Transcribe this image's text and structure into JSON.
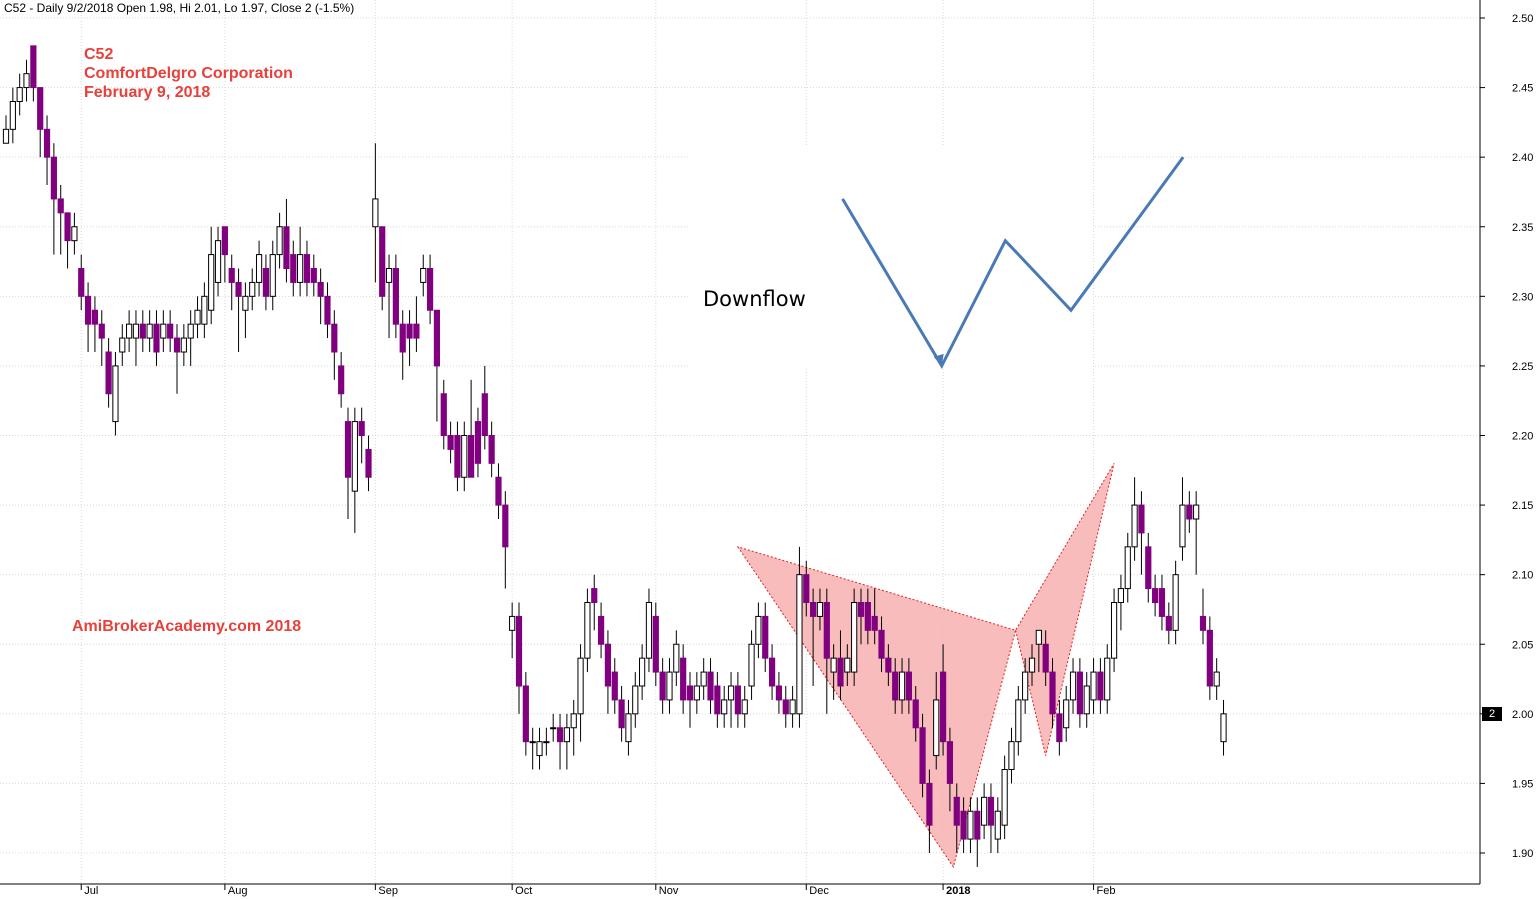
{
  "header": {
    "info_line": "C52 - Daily 9/2/2018 Open 1.98, Hi 2.01, Lo 1.97, Close 2 (-1.5%)"
  },
  "title": {
    "symbol": "C52",
    "company": "ComfortDelgro Corporation",
    "date": "February 9, 2018"
  },
  "watermark": "AmiBrokerAcademy.com  2018",
  "annotation": "Downflow",
  "last_price_tag": "2",
  "colors": {
    "down_candle": "#800080",
    "up_candle": "#ffffff",
    "pattern_fill": "#f7b0b0",
    "pattern_edge": "#e02020",
    "annotation_line": "#4a7ab5",
    "text_red": "#e8403a"
  },
  "chart_data": {
    "type": "candlestick",
    "ylim": [
      1.88,
      2.5
    ],
    "y_ticks": [
      "1.90",
      "1.95",
      "2.00",
      "2.05",
      "2.10",
      "2.15",
      "2.20",
      "2.25",
      "2.30",
      "2.35",
      "2.40",
      "2.45",
      "2.50"
    ],
    "x_ticks": [
      "Jul",
      "Aug",
      "Sep",
      "Oct",
      "Nov",
      "Dec",
      "2018",
      "Feb"
    ],
    "grid": true,
    "candles": [
      [
        2.41,
        2.42,
        2.43,
        2.41
      ],
      [
        2.42,
        2.44,
        2.45,
        2.41
      ],
      [
        2.44,
        2.45,
        2.46,
        2.43
      ],
      [
        2.45,
        2.46,
        2.47,
        2.44
      ],
      [
        2.48,
        2.45,
        2.48,
        2.44
      ],
      [
        2.45,
        2.42,
        2.45,
        2.4
      ],
      [
        2.42,
        2.4,
        2.43,
        2.38
      ],
      [
        2.4,
        2.37,
        2.41,
        2.33
      ],
      [
        2.37,
        2.36,
        2.38,
        2.33
      ],
      [
        2.36,
        2.34,
        2.36,
        2.32
      ],
      [
        2.34,
        2.35,
        2.36,
        2.33
      ],
      [
        2.32,
        2.3,
        2.33,
        2.29
      ],
      [
        2.3,
        2.28,
        2.31,
        2.26
      ],
      [
        2.29,
        2.28,
        2.3,
        2.26
      ],
      [
        2.28,
        2.27,
        2.29,
        2.25
      ],
      [
        2.26,
        2.23,
        2.27,
        2.22
      ],
      [
        2.21,
        2.25,
        2.26,
        2.2
      ],
      [
        2.26,
        2.27,
        2.28,
        2.25
      ],
      [
        2.27,
        2.28,
        2.29,
        2.26
      ],
      [
        2.27,
        2.28,
        2.29,
        2.25
      ],
      [
        2.28,
        2.27,
        2.29,
        2.26
      ],
      [
        2.27,
        2.28,
        2.29,
        2.26
      ],
      [
        2.28,
        2.26,
        2.29,
        2.25
      ],
      [
        2.27,
        2.28,
        2.29,
        2.26
      ],
      [
        2.28,
        2.27,
        2.29,
        2.26
      ],
      [
        2.27,
        2.26,
        2.28,
        2.23
      ],
      [
        2.26,
        2.27,
        2.28,
        2.25
      ],
      [
        2.27,
        2.28,
        2.29,
        2.25
      ],
      [
        2.28,
        2.29,
        2.3,
        2.27
      ],
      [
        2.28,
        2.3,
        2.31,
        2.27
      ],
      [
        2.29,
        2.33,
        2.35,
        2.28
      ],
      [
        2.31,
        2.34,
        2.35,
        2.3
      ],
      [
        2.35,
        2.33,
        2.35,
        2.31
      ],
      [
        2.32,
        2.31,
        2.33,
        2.29
      ],
      [
        2.31,
        2.3,
        2.32,
        2.26
      ],
      [
        2.29,
        2.3,
        2.31,
        2.27
      ],
      [
        2.3,
        2.31,
        2.32,
        2.29
      ],
      [
        2.31,
        2.33,
        2.34,
        2.3
      ],
      [
        2.32,
        2.3,
        2.33,
        2.29
      ],
      [
        2.3,
        2.33,
        2.34,
        2.29
      ],
      [
        2.33,
        2.35,
        2.36,
        2.32
      ],
      [
        2.35,
        2.32,
        2.37,
        2.31
      ],
      [
        2.33,
        2.31,
        2.34,
        2.3
      ],
      [
        2.31,
        2.33,
        2.35,
        2.3
      ],
      [
        2.33,
        2.31,
        2.34,
        2.3
      ],
      [
        2.32,
        2.31,
        2.33,
        2.3
      ],
      [
        2.31,
        2.3,
        2.32,
        2.28
      ],
      [
        2.3,
        2.28,
        2.31,
        2.27
      ],
      [
        2.28,
        2.26,
        2.29,
        2.24
      ],
      [
        2.25,
        2.23,
        2.26,
        2.22
      ],
      [
        2.21,
        2.17,
        2.22,
        2.14
      ],
      [
        2.16,
        2.21,
        2.22,
        2.13
      ],
      [
        2.21,
        2.2,
        2.22,
        2.18
      ],
      [
        2.19,
        2.17,
        2.2,
        2.16
      ],
      [
        2.35,
        2.37,
        2.41,
        2.31
      ],
      [
        2.35,
        2.3,
        2.35,
        2.29
      ],
      [
        2.31,
        2.32,
        2.33,
        2.27
      ],
      [
        2.32,
        2.28,
        2.33,
        2.27
      ],
      [
        2.28,
        2.26,
        2.29,
        2.24
      ],
      [
        2.28,
        2.27,
        2.29,
        2.25
      ],
      [
        2.28,
        2.27,
        2.3,
        2.26
      ],
      [
        2.31,
        2.32,
        2.33,
        2.3
      ],
      [
        2.32,
        2.29,
        2.33,
        2.28
      ],
      [
        2.29,
        2.25,
        2.29,
        2.21
      ],
      [
        2.23,
        2.2,
        2.24,
        2.19
      ],
      [
        2.2,
        2.19,
        2.21,
        2.18
      ],
      [
        2.2,
        2.17,
        2.21,
        2.16
      ],
      [
        2.17,
        2.2,
        2.21,
        2.16
      ],
      [
        2.2,
        2.17,
        2.24,
        2.17
      ],
      [
        2.21,
        2.18,
        2.22,
        2.17
      ],
      [
        2.23,
        2.2,
        2.25,
        2.19
      ],
      [
        2.2,
        2.18,
        2.21,
        2.17
      ],
      [
        2.17,
        2.15,
        2.18,
        2.14
      ],
      [
        2.15,
        2.12,
        2.16,
        2.09
      ],
      [
        2.06,
        2.07,
        2.08,
        2.04
      ],
      [
        2.07,
        2.02,
        2.08,
        2.0
      ],
      [
        2.02,
        1.98,
        2.03,
        1.97
      ],
      [
        1.98,
        1.98,
        1.99,
        1.96
      ],
      [
        1.97,
        1.98,
        1.99,
        1.96
      ],
      [
        1.98,
        1.98,
        1.99,
        1.97
      ],
      [
        1.99,
        1.99,
        2.0,
        1.98
      ],
      [
        1.99,
        1.98,
        2.0,
        1.96
      ],
      [
        1.98,
        1.99,
        2.0,
        1.96
      ],
      [
        1.99,
        2.0,
        2.01,
        1.97
      ],
      [
        2.0,
        2.04,
        2.05,
        1.98
      ],
      [
        2.04,
        2.08,
        2.09,
        2.03
      ],
      [
        2.09,
        2.08,
        2.1,
        2.06
      ],
      [
        2.07,
        2.05,
        2.08,
        2.04
      ],
      [
        2.05,
        2.02,
        2.06,
        2.0
      ],
      [
        2.03,
        2.01,
        2.04,
        2.0
      ],
      [
        2.01,
        1.99,
        2.02,
        1.98
      ],
      [
        1.98,
        2.0,
        2.01,
        1.97
      ],
      [
        2.0,
        2.02,
        2.03,
        1.99
      ],
      [
        2.02,
        2.04,
        2.05,
        2.01
      ],
      [
        2.04,
        2.08,
        2.09,
        2.03
      ],
      [
        2.07,
        2.03,
        2.08,
        2.02
      ],
      [
        2.03,
        2.01,
        2.04,
        2.0
      ],
      [
        2.01,
        2.03,
        2.04,
        2.0
      ],
      [
        2.03,
        2.05,
        2.06,
        2.02
      ],
      [
        2.04,
        2.01,
        2.05,
        2.0
      ],
      [
        2.02,
        2.01,
        2.03,
        1.99
      ],
      [
        2.01,
        2.02,
        2.03,
        2.0
      ],
      [
        2.02,
        2.03,
        2.04,
        2.01
      ],
      [
        2.03,
        2.01,
        2.04,
        2.0
      ],
      [
        2.02,
        2.0,
        2.03,
        1.99
      ],
      [
        2.0,
        2.01,
        2.02,
        1.99
      ],
      [
        2.01,
        2.02,
        2.03,
        1.99
      ],
      [
        2.02,
        2.0,
        2.03,
        1.99
      ],
      [
        2.0,
        2.01,
        2.02,
        1.99
      ],
      [
        2.02,
        2.05,
        2.06,
        2.01
      ],
      [
        2.05,
        2.07,
        2.08,
        2.04
      ],
      [
        2.07,
        2.04,
        2.08,
        2.03
      ],
      [
        2.04,
        2.02,
        2.05,
        2.01
      ],
      [
        2.02,
        2.01,
        2.03,
        2.0
      ],
      [
        2.01,
        2.0,
        2.02,
        1.99
      ],
      [
        2.0,
        2.01,
        2.02,
        1.99
      ],
      [
        2.0,
        2.1,
        2.12,
        1.99
      ],
      [
        2.1,
        2.08,
        2.11,
        2.07
      ],
      [
        2.08,
        2.07,
        2.09,
        2.02
      ],
      [
        2.07,
        2.08,
        2.09,
        2.06
      ],
      [
        2.08,
        2.04,
        2.09,
        2.0
      ],
      [
        2.03,
        2.04,
        2.05,
        2.01
      ],
      [
        2.04,
        2.02,
        2.06,
        2.01
      ],
      [
        2.03,
        2.04,
        2.05,
        2.02
      ],
      [
        2.03,
        2.08,
        2.09,
        2.02
      ],
      [
        2.08,
        2.07,
        2.09,
        2.05
      ],
      [
        2.08,
        2.06,
        2.09,
        2.05
      ],
      [
        2.07,
        2.06,
        2.09,
        2.05
      ],
      [
        2.06,
        2.04,
        2.07,
        2.03
      ],
      [
        2.04,
        2.03,
        2.05,
        2.02
      ],
      [
        2.03,
        2.01,
        2.04,
        2.0
      ],
      [
        2.01,
        2.03,
        2.04,
        2.0
      ],
      [
        2.03,
        2.01,
        2.04,
        2.0
      ],
      [
        2.01,
        1.99,
        2.02,
        1.98
      ],
      [
        1.99,
        1.95,
        2.0,
        1.94
      ],
      [
        1.95,
        1.92,
        1.96,
        1.9
      ],
      [
        1.97,
        2.01,
        2.03,
        1.96
      ],
      [
        2.03,
        1.98,
        2.05,
        1.97
      ],
      [
        1.98,
        1.95,
        1.99,
        1.93
      ],
      [
        1.94,
        1.92,
        1.95,
        1.9
      ],
      [
        1.93,
        1.91,
        1.94,
        1.9
      ],
      [
        1.91,
        1.93,
        1.94,
        1.9
      ],
      [
        1.93,
        1.91,
        1.94,
        1.89
      ],
      [
        1.92,
        1.94,
        1.95,
        1.91
      ],
      [
        1.94,
        1.92,
        1.95,
        1.9
      ],
      [
        1.91,
        1.93,
        1.94,
        1.9
      ],
      [
        1.92,
        1.96,
        1.97,
        1.91
      ],
      [
        1.96,
        1.98,
        1.99,
        1.95
      ],
      [
        1.98,
        2.01,
        2.02,
        1.97
      ],
      [
        2.01,
        2.03,
        2.04,
        2.0
      ],
      [
        2.03,
        2.04,
        2.05,
        2.02
      ],
      [
        2.05,
        2.06,
        2.06,
        2.03
      ],
      [
        2.05,
        2.03,
        2.06,
        2.02
      ],
      [
        2.03,
        2.0,
        2.04,
        1.99
      ],
      [
        2.0,
        1.98,
        2.01,
        1.97
      ],
      [
        1.99,
        2.01,
        2.02,
        1.98
      ],
      [
        2.01,
        2.03,
        2.04,
        2.0
      ],
      [
        2.03,
        2.0,
        2.04,
        1.99
      ],
      [
        2.0,
        2.02,
        2.03,
        1.99
      ],
      [
        2.01,
        2.03,
        2.04,
        2.0
      ],
      [
        2.03,
        2.01,
        2.04,
        2.0
      ],
      [
        2.01,
        2.04,
        2.05,
        2.0
      ],
      [
        2.04,
        2.08,
        2.09,
        2.03
      ],
      [
        2.08,
        2.09,
        2.1,
        2.06
      ],
      [
        2.09,
        2.12,
        2.13,
        2.08
      ],
      [
        2.12,
        2.15,
        2.17,
        2.11
      ],
      [
        2.15,
        2.13,
        2.16,
        2.1
      ],
      [
        2.12,
        2.09,
        2.13,
        2.08
      ],
      [
        2.09,
        2.08,
        2.1,
        2.07
      ],
      [
        2.09,
        2.07,
        2.1,
        2.06
      ],
      [
        2.07,
        2.06,
        2.08,
        2.05
      ],
      [
        2.06,
        2.1,
        2.11,
        2.05
      ],
      [
        2.12,
        2.15,
        2.17,
        2.11
      ],
      [
        2.15,
        2.14,
        2.16,
        2.13
      ],
      [
        2.14,
        2.15,
        2.16,
        2.1
      ],
      [
        2.07,
        2.06,
        2.09,
        2.05
      ],
      [
        2.06,
        2.02,
        2.07,
        2.01
      ],
      [
        2.02,
        2.03,
        2.04,
        2.01
      ],
      [
        1.98,
        2.0,
        2.01,
        1.97
      ]
    ],
    "pattern_triangles": [
      {
        "name": "left",
        "points": [
          [
            2.12,
            107
          ],
          [
            1.89,
            138.5
          ],
          [
            2.06,
            147.6
          ]
        ]
      },
      {
        "name": "right",
        "points": [
          [
            2.06,
            147.6
          ],
          [
            1.97,
            152
          ],
          [
            2.18,
            162
          ]
        ]
      }
    ],
    "annotation_w": [
      [
        2.37,
        122.3
      ],
      [
        2.25,
        136.8
      ],
      [
        2.34,
        146.1
      ],
      [
        2.29,
        155.7
      ],
      [
        2.4,
        172.1
      ]
    ]
  }
}
